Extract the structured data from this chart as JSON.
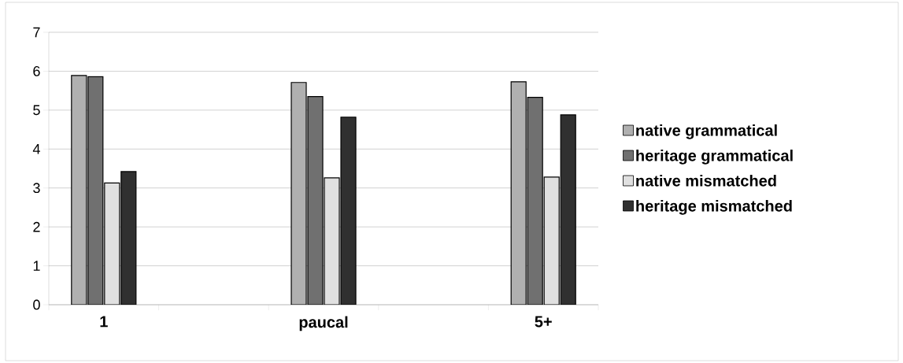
{
  "chart_data": {
    "type": "bar",
    "categories": [
      "1",
      "paucal",
      "5+"
    ],
    "series": [
      {
        "name": "native grammatical",
        "color": "#b0b0b0",
        "values": [
          5.89,
          5.71,
          5.73
        ]
      },
      {
        "name": "heritage grammatical",
        "color": "#707070",
        "values": [
          5.86,
          5.35,
          5.33
        ]
      },
      {
        "name": "native mismatched",
        "color": "#e0e0e0",
        "values": [
          3.13,
          3.26,
          3.28
        ]
      },
      {
        "name": "heritage mismatched",
        "color": "#303030",
        "values": [
          3.42,
          4.82,
          4.88
        ]
      }
    ],
    "ylim": [
      0,
      7
    ],
    "yticks": [
      0,
      1,
      2,
      3,
      4,
      5,
      6,
      7
    ],
    "grid": "y",
    "legend": "right"
  }
}
